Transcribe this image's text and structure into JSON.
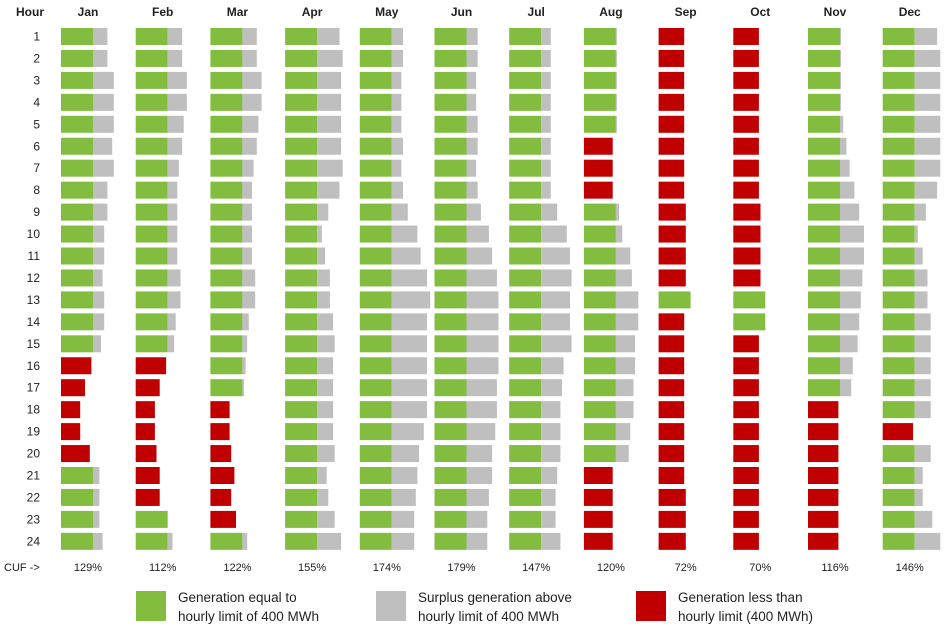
{
  "chart_data": {
    "type": "bar",
    "title": "",
    "row_header": "Hour",
    "cuf_label": "CUF ->",
    "months": [
      "Jan",
      "Feb",
      "Mar",
      "Apr",
      "May",
      "Jun",
      "Jul",
      "Aug",
      "Sep",
      "Oct",
      "Nov",
      "Dec"
    ],
    "hours": [
      "1",
      "2",
      "3",
      "4",
      "5",
      "6",
      "7",
      "8",
      "9",
      "10",
      "11",
      "12",
      "13",
      "14",
      "15",
      "16",
      "17",
      "18",
      "19",
      "20",
      "21",
      "22",
      "23",
      "24"
    ],
    "hourly_limit_mwh": 400,
    "cuf": [
      "129%",
      "112%",
      "122%",
      "155%",
      "174%",
      "179%",
      "147%",
      "120%",
      "72%",
      "70%",
      "116%",
      "146%"
    ],
    "units": "ratio of hourly generation to 400 MWh limit (green/red = min(ratio,1), grey = surplus above 1)",
    "generation_ratio": {
      "Jan": [
        1.45,
        1.45,
        1.65,
        1.65,
        1.65,
        1.6,
        1.65,
        1.45,
        1.45,
        1.35,
        1.35,
        1.3,
        1.35,
        1.35,
        1.25,
        0.95,
        0.75,
        0.6,
        0.6,
        0.9,
        1.2,
        1.2,
        1.2,
        1.3
      ],
      "Feb": [
        1.45,
        1.45,
        1.6,
        1.6,
        1.5,
        1.45,
        1.35,
        1.3,
        1.3,
        1.3,
        1.3,
        1.4,
        1.4,
        1.25,
        1.2,
        0.95,
        0.75,
        0.6,
        0.6,
        0.65,
        0.75,
        0.75,
        1.0,
        1.15
      ],
      "Mar": [
        1.45,
        1.45,
        1.6,
        1.6,
        1.5,
        1.45,
        1.35,
        1.3,
        1.3,
        1.3,
        1.3,
        1.4,
        1.4,
        1.2,
        1.15,
        1.1,
        1.05,
        0.6,
        0.6,
        0.65,
        0.75,
        0.65,
        0.8,
        1.15
      ],
      "Apr": [
        1.7,
        1.8,
        1.75,
        1.75,
        1.75,
        1.75,
        1.8,
        1.7,
        1.35,
        1.15,
        1.25,
        1.4,
        1.4,
        1.5,
        1.55,
        1.5,
        1.5,
        1.5,
        1.5,
        1.55,
        1.3,
        1.35,
        1.55,
        1.75
      ],
      "May": [
        1.35,
        1.35,
        1.3,
        1.3,
        1.3,
        1.35,
        1.3,
        1.35,
        1.5,
        1.8,
        1.9,
        2.1,
        2.2,
        2.1,
        2.1,
        2.1,
        2.1,
        2.1,
        2.0,
        1.85,
        1.8,
        1.75,
        1.7,
        1.7
      ],
      "Jun": [
        1.35,
        1.35,
        1.3,
        1.3,
        1.35,
        1.35,
        1.3,
        1.35,
        1.45,
        1.7,
        1.8,
        1.95,
        2.0,
        2.0,
        2.0,
        2.0,
        1.95,
        1.95,
        1.9,
        1.8,
        1.8,
        1.7,
        1.65,
        1.65
      ],
      "Jul": [
        1.3,
        1.3,
        1.3,
        1.3,
        1.3,
        1.3,
        1.3,
        1.3,
        1.5,
        1.8,
        1.9,
        1.95,
        1.9,
        1.9,
        1.95,
        1.7,
        1.65,
        1.6,
        1.6,
        1.6,
        1.5,
        1.45,
        1.45,
        1.6
      ],
      "Aug": [
        1.03,
        1.03,
        1.03,
        1.03,
        1.03,
        0.9,
        0.9,
        0.9,
        1.1,
        1.2,
        1.45,
        1.5,
        1.7,
        1.7,
        1.6,
        1.6,
        1.55,
        1.55,
        1.45,
        1.4,
        0.9,
        0.9,
        0.9,
        0.9
      ],
      "Sep": [
        0.8,
        0.8,
        0.8,
        0.8,
        0.8,
        0.8,
        0.8,
        0.8,
        0.85,
        0.85,
        0.85,
        0.85,
        1.0,
        0.8,
        0.8,
        0.8,
        0.8,
        0.8,
        0.8,
        0.8,
        0.8,
        0.85,
        0.85,
        0.85
      ],
      "Oct": [
        0.8,
        0.8,
        0.8,
        0.8,
        0.8,
        0.8,
        0.8,
        0.8,
        0.85,
        0.85,
        0.85,
        0.85,
        1.0,
        1.0,
        0.8,
        0.8,
        0.8,
        0.8,
        0.8,
        0.8,
        0.8,
        0.8,
        0.8,
        0.8
      ],
      "Nov": [
        1.03,
        1.03,
        1.03,
        1.03,
        1.1,
        1.2,
        1.3,
        1.45,
        1.6,
        1.75,
        1.75,
        1.7,
        1.65,
        1.6,
        1.55,
        1.4,
        1.35,
        0.95,
        0.95,
        0.95,
        0.95,
        0.95,
        0.95,
        0.95
      ],
      "Dec": [
        1.7,
        1.8,
        1.8,
        1.8,
        1.8,
        1.8,
        1.8,
        1.7,
        1.35,
        1.1,
        1.25,
        1.4,
        1.4,
        1.5,
        1.5,
        1.5,
        1.5,
        1.5,
        0.95,
        1.5,
        1.25,
        1.25,
        1.55,
        1.8
      ]
    },
    "legend": [
      {
        "label": "Generation equal to\nhourly limit of 400 MWh",
        "color": "#82bd40"
      },
      {
        "label": "Surplus generation above\nhourly limit of 400 MWh",
        "color": "#bfbfbf"
      },
      {
        "label": "Generation less than\nhourly limit (400 MWh)",
        "color": "#c00000"
      }
    ],
    "colors": {
      "at_limit": "#82bd40",
      "surplus": "#bfbfbf",
      "below_limit": "#c00000"
    },
    "grid": false,
    "legend_position": "bottom"
  }
}
